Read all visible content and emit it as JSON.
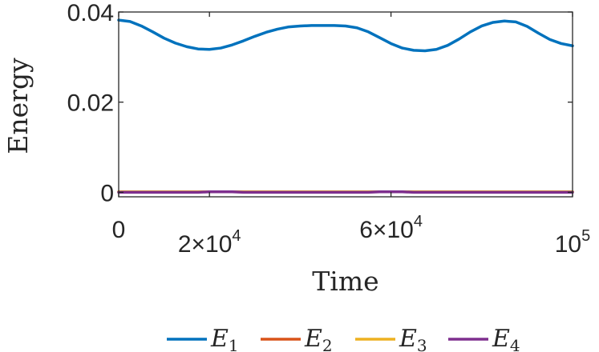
{
  "chart_data": {
    "type": "line",
    "title": "",
    "xlabel": "Time",
    "ylabel": "Energy",
    "xlim": [
      0,
      100000
    ],
    "ylim": [
      -0.001,
      0.04
    ],
    "grid": false,
    "legend_placement": "bottom",
    "x_ticks": [
      {
        "value": 0,
        "label": "0",
        "sup": ""
      },
      {
        "value": 20000,
        "label": "2×10",
        "sup": "4"
      },
      {
        "value": 60000,
        "label": "6×10",
        "sup": "4"
      },
      {
        "value": 100000,
        "label": "10",
        "sup": "5"
      }
    ],
    "y_ticks": [
      {
        "value": 0,
        "label": "0"
      },
      {
        "value": 0.02,
        "label": "0.02"
      },
      {
        "value": 0.04,
        "label": "0.04"
      }
    ],
    "x": [
      0,
      2500,
      5000,
      7500,
      10000,
      12500,
      15000,
      17500,
      20000,
      22500,
      25000,
      27500,
      30000,
      32500,
      35000,
      37500,
      40000,
      42500,
      45000,
      47500,
      50000,
      52500,
      55000,
      57500,
      60000,
      62500,
      65000,
      67500,
      70000,
      72500,
      75000,
      77500,
      80000,
      82500,
      85000,
      87500,
      90000,
      92500,
      95000,
      97500,
      100000
    ],
    "series": [
      {
        "name": "E",
        "sub": "1",
        "color": "#0072BD",
        "values": [
          0.0382,
          0.0379,
          0.0369,
          0.0356,
          0.0342,
          0.0331,
          0.0323,
          0.0318,
          0.0317,
          0.032,
          0.0327,
          0.0336,
          0.0346,
          0.0355,
          0.0362,
          0.0367,
          0.0369,
          0.037,
          0.037,
          0.037,
          0.0369,
          0.0365,
          0.0356,
          0.0343,
          0.033,
          0.032,
          0.0315,
          0.0314,
          0.0317,
          0.0326,
          0.034,
          0.0356,
          0.0369,
          0.0377,
          0.038,
          0.0378,
          0.0368,
          0.0353,
          0.0339,
          0.033,
          0.0325
        ]
      },
      {
        "name": "E",
        "sub": "2",
        "color": "#D95319",
        "values": [
          0.0001,
          0.0001,
          0.0001,
          0.0001,
          0.0001,
          0.0001,
          0.0001,
          0.0001,
          0.0001,
          0.0001,
          0.0001,
          0.0001,
          0.0001,
          0.0001,
          0.0001,
          0.0001,
          0.0001,
          0.0001,
          0.0001,
          0.0001,
          0.0001,
          0.0001,
          0.0001,
          0.0001,
          0.0001,
          0.0001,
          0.0001,
          0.0001,
          0.0001,
          0.0001,
          0.0001,
          0.0001,
          0.0001,
          0.0001,
          0.0001,
          0.0001,
          0.0001,
          0.0001,
          0.0001,
          0.0001,
          0.0001
        ]
      },
      {
        "name": "E",
        "sub": "3",
        "color": "#EDB120",
        "values": [
          0.0001,
          0.0001,
          0.0001,
          0.0001,
          0.0001,
          0.0001,
          0.0001,
          0.0001,
          0.0001,
          0.0001,
          0.0001,
          0.0001,
          0.0001,
          0.0001,
          0.0001,
          0.0001,
          0.0001,
          0.0001,
          0.0001,
          0.0001,
          0.0001,
          0.0001,
          0.0001,
          0.0001,
          0.0001,
          0.0001,
          0.0001,
          0.0001,
          0.0001,
          0.0001,
          0.0001,
          0.0001,
          0.0001,
          0.0001,
          0.0001,
          0.0001,
          0.0001,
          0.0001,
          0.0001,
          0.0001,
          0.0001
        ]
      },
      {
        "name": "E",
        "sub": "4",
        "color": "#7E2F8E",
        "values": [
          0.0,
          0.0,
          0.0,
          0.0,
          0.0,
          0.0,
          0.0,
          0.0,
          0.0001,
          0.0001,
          0.0001,
          0.0,
          0.0,
          0.0,
          0.0,
          0.0,
          0.0,
          0.0,
          0.0,
          0.0,
          0.0,
          0.0,
          0.0,
          0.0001,
          0.0001,
          0.0001,
          0.0,
          0.0,
          0.0,
          0.0,
          0.0,
          0.0,
          0.0,
          0.0,
          0.0,
          0.0,
          0.0,
          0.0,
          0.0,
          0.0,
          0.0
        ]
      }
    ]
  }
}
